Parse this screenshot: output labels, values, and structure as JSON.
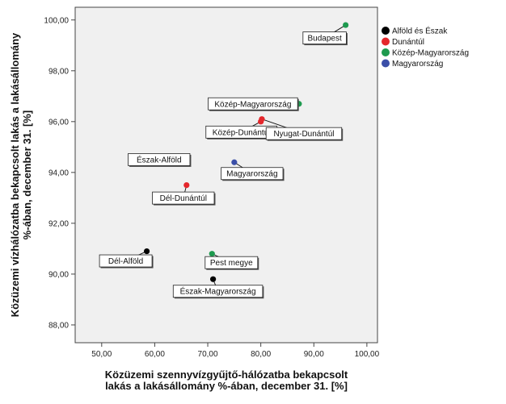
{
  "chart_data": {
    "type": "scatter",
    "xlabel_lines": [
      "Közüzemi szennyvízgyűjtő-hálózatba bekapcsolt",
      "lakás a lakásállomány %-ában, december 31. [%]"
    ],
    "ylabel_lines": [
      "Közüzemi vízhálózatba bekapcsolt lakás a lakásállomány",
      "%-ában, december 31. [%]"
    ],
    "xlim": [
      45,
      102
    ],
    "ylim": [
      87.3,
      100.5
    ],
    "x_ticks": [
      50,
      60,
      70,
      80,
      90,
      100
    ],
    "x_tick_labels": [
      "50,00",
      "60,00",
      "70,00",
      "80,00",
      "90,00",
      "100,00"
    ],
    "y_ticks": [
      88,
      90,
      92,
      94,
      96,
      98,
      100
    ],
    "y_tick_labels": [
      "88,00",
      "90,00",
      "92,00",
      "94,00",
      "96,00",
      "98,00",
      "100,00"
    ],
    "grid": false,
    "legend_position": "right",
    "series": [
      {
        "name": "Alföld és Észak",
        "color": "#000000",
        "points": [
          {
            "label": "Dél-Alföld",
            "x": 58.5,
            "y": 90.9
          },
          {
            "label": "Észak-Alföld",
            "x": 66.3,
            "y": 94.6
          },
          {
            "label": "Észak-Magyarország",
            "x": 71.0,
            "y": 89.8
          }
        ]
      },
      {
        "name": "Dunántúl",
        "color": "#e5272c",
        "points": [
          {
            "label": "Dél-Dunántúl",
            "x": 66.0,
            "y": 93.5
          },
          {
            "label": "Közép-Dunántúl",
            "x": 80.0,
            "y": 96.0
          },
          {
            "label": "Nyugat-Dunántúl",
            "x": 80.2,
            "y": 96.1
          }
        ]
      },
      {
        "name": "Közép-Magyarország",
        "color": "#1e9a4f",
        "points": [
          {
            "label": "Pest megye",
            "x": 70.8,
            "y": 90.8
          },
          {
            "label": "Közép-Magyarország",
            "x": 87.2,
            "y": 96.7
          },
          {
            "label": "Budapest",
            "x": 96.0,
            "y": 99.8
          }
        ]
      },
      {
        "name": "Magyarország",
        "color": "#3b4fa8",
        "points": [
          {
            "label": "Magyarország",
            "x": 75.0,
            "y": 94.4
          }
        ]
      }
    ]
  }
}
